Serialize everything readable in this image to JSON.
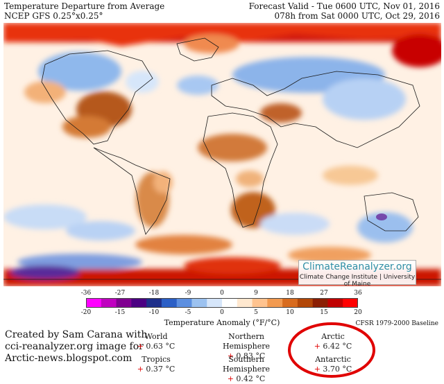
{
  "header": {
    "title": "Temperature Departure from Average",
    "model": "NCEP GFS 0.25°x0.25°",
    "forecast_valid": "Forecast Valid - Tue 0600 UTC, Nov 01, 2016",
    "run": "078h from Sat 0000 UTC, Oct 29, 2016"
  },
  "brand": {
    "name": "ClimateReanalyzer.org",
    "sub": "Climate Change Institute | University of Maine"
  },
  "colorbar": {
    "fahrenheit_ticks": [
      "-36",
      "-27",
      "-18",
      "-9",
      "0",
      "9",
      "18",
      "27",
      "36"
    ],
    "celsius_ticks": [
      "-20",
      "-15",
      "-10",
      "-5",
      "0",
      "5",
      "10",
      "15",
      "20"
    ],
    "label": "Temperature Anomaly (°F/°C)",
    "colors": [
      "#ff00ff",
      "#c000c0",
      "#800090",
      "#4b0082",
      "#1e2f8a",
      "#2b5fc6",
      "#5c8fe0",
      "#9cc2f0",
      "#d6e6fa",
      "#ffffff",
      "#ffe8cf",
      "#ffc38f",
      "#f29a50",
      "#d86b1e",
      "#b24708",
      "#8b1f04",
      "#c00000",
      "#ff0000"
    ]
  },
  "baseline": "CFSR 1979-2000 Baseline",
  "credit": {
    "line1": "Created by Sam Carana with",
    "line2": "cci-reanalyzer.org image for",
    "line3": "Arctic-news.blogspot.com"
  },
  "stats": {
    "world": {
      "label": "World",
      "value": "+ 0.63 °C"
    },
    "tropics": {
      "label": "Tropics",
      "value": "+ 0.37 °C"
    },
    "nh": {
      "label": "Northern Hemisphere",
      "value": "+ 0.83 °C"
    },
    "sh": {
      "label": "Southern Hemisphere",
      "value": "+ 0.42 °C"
    },
    "arctic": {
      "label": "Arctic",
      "value": "+ 6.42 °C"
    },
    "antarctic": {
      "label": "Antarctic",
      "value": "+ 3.70 °C"
    }
  },
  "map_colors": {
    "ocean_base": "#fff4ea",
    "arctic_warm": "#c81000",
    "cold": "#9fc3ee",
    "warm": "#e59050",
    "land_edge": "#222222"
  }
}
